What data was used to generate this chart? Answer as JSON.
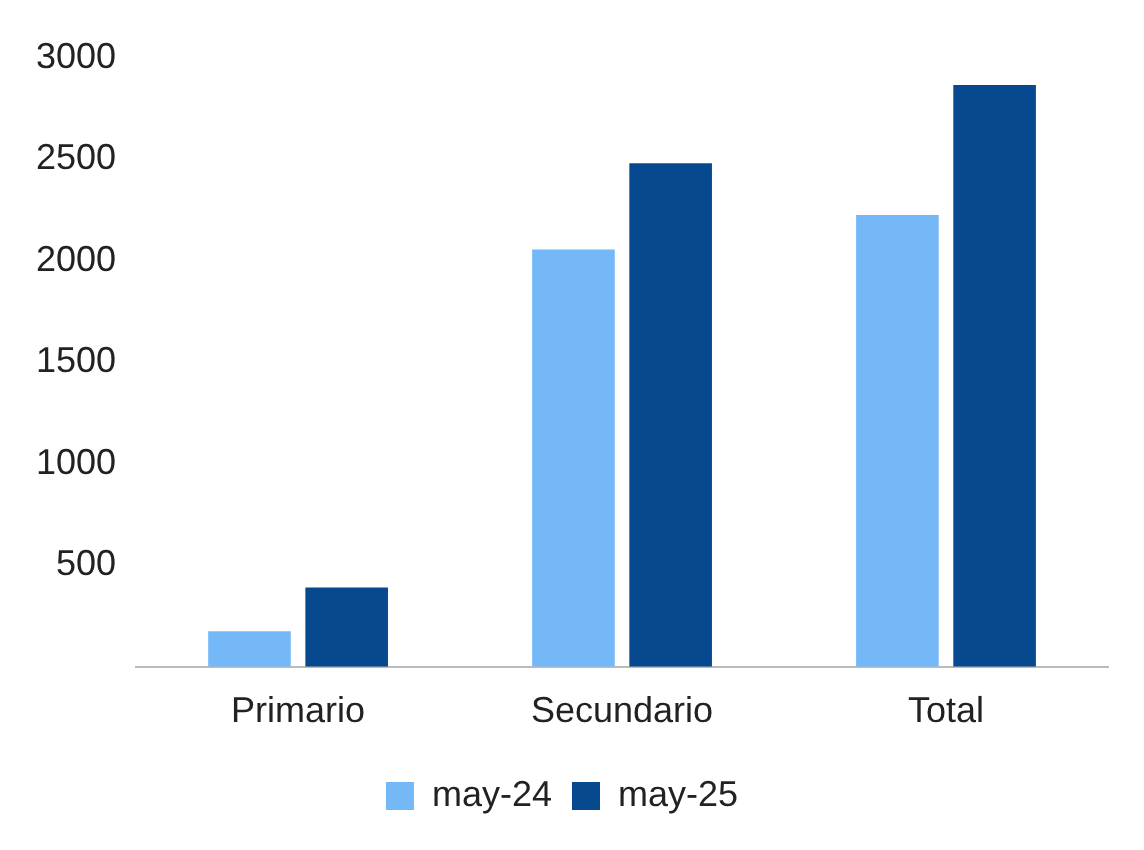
{
  "chart_data": {
    "type": "bar",
    "categories": [
      "Primario",
      "Secundario",
      "Total"
    ],
    "series": [
      {
        "name": "may-24",
        "color": "#74b8f8",
        "values": [
          175,
          2055,
          2225
        ]
      },
      {
        "name": "may-25",
        "color": "#06498e",
        "values": [
          390,
          2480,
          2865
        ]
      }
    ],
    "ylim": [
      0,
      3000
    ],
    "yticks": [
      500,
      1000,
      1500,
      2000,
      2500,
      3000
    ],
    "grid": false,
    "legend": "bottom"
  }
}
